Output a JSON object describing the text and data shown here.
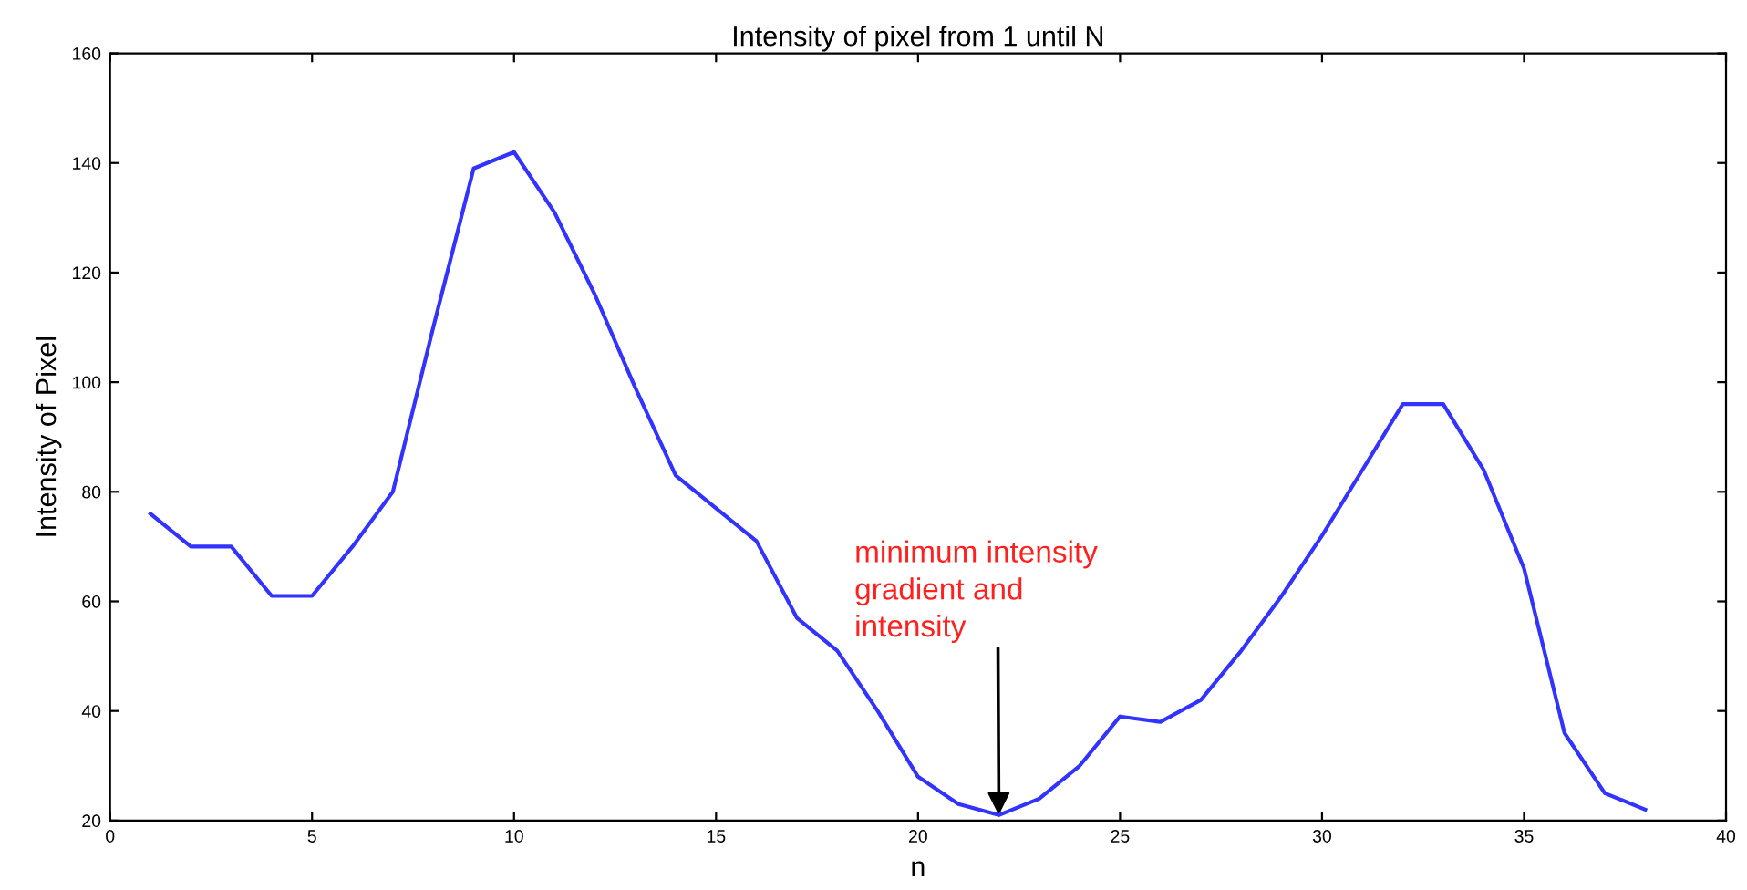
{
  "chart_data": {
    "type": "line",
    "title": "Intensity of pixel from 1 until N",
    "xlabel": "n",
    "ylabel": "Intensity of Pixel",
    "x": [
      1,
      2,
      3,
      4,
      5,
      6,
      7,
      8,
      9,
      10,
      11,
      12,
      13,
      14,
      15,
      16,
      17,
      18,
      19,
      20,
      21,
      22,
      23,
      24,
      25,
      26,
      27,
      28,
      29,
      30,
      31,
      32,
      33,
      34,
      35,
      36,
      37,
      38
    ],
    "series": [
      {
        "color": "#3333ff",
        "values": [
          76,
          70,
          70,
          61,
          61,
          70,
          80,
          110,
          139,
          142,
          131,
          116,
          99,
          83,
          77,
          71,
          57,
          51,
          40,
          28,
          23,
          21,
          24,
          30,
          39,
          38,
          42,
          51,
          61,
          72,
          84,
          96,
          96,
          84,
          66,
          36,
          25,
          22
        ]
      }
    ],
    "xlim": [
      0,
      40
    ],
    "xticks": [
      0,
      5,
      10,
      15,
      20,
      25,
      30,
      35,
      40
    ],
    "ylim": [
      20,
      160
    ],
    "yticks": [
      20,
      40,
      60,
      80,
      100,
      120,
      140,
      160
    ],
    "grid": false,
    "legend": false,
    "marker": "none",
    "line_style": "solid",
    "annotations": [
      {
        "text": "minimum intensity\ngradient and\nintensity",
        "x": 22,
        "y": 21
      }
    ]
  }
}
